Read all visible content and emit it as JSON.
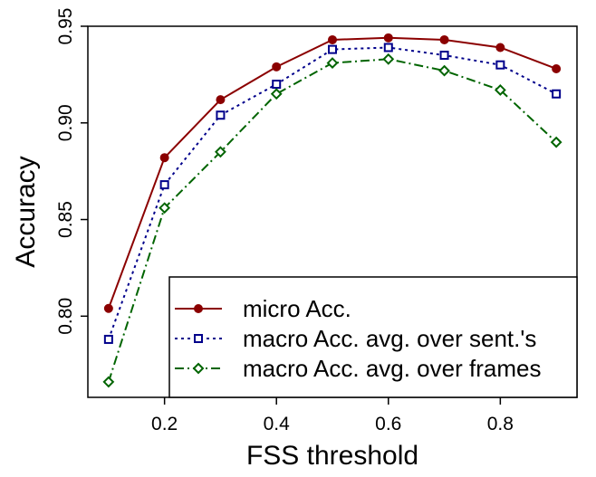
{
  "chart_data": {
    "type": "line",
    "xlabel": "FSS threshold",
    "ylabel": "Accuracy",
    "x": [
      0.1,
      0.2,
      0.3,
      0.4,
      0.5,
      0.6,
      0.7,
      0.8,
      0.9
    ],
    "xlim": [
      0.063,
      0.937
    ],
    "ylim": [
      0.758,
      0.95
    ],
    "xticks": [
      0.2,
      0.4,
      0.6,
      0.8
    ],
    "xtick_labels": [
      "0.2",
      "0.4",
      "0.6",
      "0.8"
    ],
    "yticks": [
      0.8,
      0.85,
      0.9,
      0.95
    ],
    "ytick_labels": [
      "0.80",
      "0.85",
      "0.90",
      "0.95"
    ],
    "grid": false,
    "legend_position": "bottom-right",
    "series": [
      {
        "name": "micro Acc.",
        "color": "#8b0000",
        "marker": "filled-circle",
        "line_style": "solid",
        "values": [
          0.804,
          0.882,
          0.912,
          0.929,
          0.943,
          0.944,
          0.943,
          0.939,
          0.928
        ]
      },
      {
        "name": "macro Acc. avg. over sent.'s",
        "color": "#00008b",
        "marker": "open-square",
        "line_style": "dotted",
        "values": [
          0.788,
          0.868,
          0.904,
          0.92,
          0.938,
          0.939,
          0.935,
          0.93,
          0.915
        ]
      },
      {
        "name": "macro Acc. avg. over frames",
        "color": "#006400",
        "marker": "open-diamond",
        "line_style": "dashdot",
        "values": [
          0.766,
          0.856,
          0.885,
          0.915,
          0.931,
          0.933,
          0.927,
          0.917,
          0.89
        ]
      }
    ]
  }
}
